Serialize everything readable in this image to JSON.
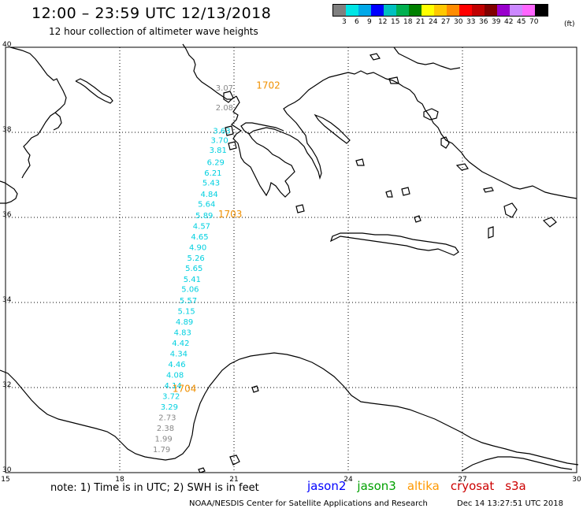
{
  "header": {
    "title": "12:00 – 23:59 UTC 12/13/2018",
    "subtitle": "12 hour collection of altimeter wave heights"
  },
  "legend": {
    "colors": [
      "#808080",
      "#00e5e5",
      "#00a8e8",
      "#0000ff",
      "#00c0c0",
      "#00b050",
      "#008000",
      "#ffff00",
      "#ffc800",
      "#ff8c00",
      "#ff0000",
      "#c00000",
      "#800000",
      "#9900cc",
      "#cc88ff",
      "#ff66ff",
      "#000000"
    ],
    "labels": [
      "3",
      "6",
      "9",
      "12",
      "15",
      "18",
      "21",
      "24",
      "27",
      "30",
      "33",
      "36",
      "39",
      "42",
      "45",
      "70"
    ],
    "unit": "(ft)"
  },
  "axes": {
    "lon_ticks": [
      "15",
      "18",
      "21",
      "24",
      "27",
      "30"
    ],
    "lat_ticks": [
      "30",
      "32",
      "34",
      "36",
      "38",
      "40"
    ]
  },
  "track": {
    "points": [
      {
        "lon": 20.75,
        "lat": 38.98,
        "swh": "3.07",
        "color": "#888888"
      },
      {
        "lon": 20.75,
        "lat": 38.52,
        "swh": "2.08",
        "color": "#888888"
      },
      {
        "lon": 20.68,
        "lat": 37.97,
        "swh": "3.63",
        "color": "#00d0e0"
      },
      {
        "lon": 20.62,
        "lat": 37.75,
        "swh": "3.70",
        "color": "#00d0e0"
      },
      {
        "lon": 20.58,
        "lat": 37.52,
        "swh": "3.81",
        "color": "#00d0e0"
      },
      {
        "lon": 20.52,
        "lat": 37.23,
        "swh": "6.29",
        "color": "#00d0e0"
      },
      {
        "lon": 20.45,
        "lat": 36.98,
        "swh": "6.21",
        "color": "#00d0e0"
      },
      {
        "lon": 20.4,
        "lat": 36.75,
        "swh": "5.43",
        "color": "#00d0e0"
      },
      {
        "lon": 20.35,
        "lat": 36.48,
        "swh": "4.84",
        "color": "#00d0e0"
      },
      {
        "lon": 20.28,
        "lat": 36.25,
        "swh": "5.64",
        "color": "#00d0e0"
      },
      {
        "lon": 20.22,
        "lat": 35.98,
        "swh": "5.89",
        "color": "#00d0e0"
      },
      {
        "lon": 20.15,
        "lat": 35.73,
        "swh": "4.57",
        "color": "#00d0e0"
      },
      {
        "lon": 20.1,
        "lat": 35.48,
        "swh": "4.65",
        "color": "#00d0e0"
      },
      {
        "lon": 20.05,
        "lat": 35.23,
        "swh": "4.90",
        "color": "#00d0e0"
      },
      {
        "lon": 20.0,
        "lat": 34.98,
        "swh": "5.26",
        "color": "#00d0e0"
      },
      {
        "lon": 19.95,
        "lat": 34.74,
        "swh": "5.65",
        "color": "#00d0e0"
      },
      {
        "lon": 19.9,
        "lat": 34.48,
        "swh": "5.41",
        "color": "#00d0e0"
      },
      {
        "lon": 19.85,
        "lat": 34.25,
        "swh": "5.06",
        "color": "#00d0e0"
      },
      {
        "lon": 19.8,
        "lat": 33.98,
        "swh": "5.57",
        "color": "#00d0e0"
      },
      {
        "lon": 19.75,
        "lat": 33.73,
        "swh": "5.15",
        "color": "#00d0e0"
      },
      {
        "lon": 19.7,
        "lat": 33.48,
        "swh": "4.89",
        "color": "#00d0e0"
      },
      {
        "lon": 19.65,
        "lat": 33.23,
        "swh": "4.83",
        "color": "#00d0e0"
      },
      {
        "lon": 19.6,
        "lat": 32.98,
        "swh": "4.42",
        "color": "#00d0e0"
      },
      {
        "lon": 19.55,
        "lat": 32.73,
        "swh": "4.34",
        "color": "#00d0e0"
      },
      {
        "lon": 19.5,
        "lat": 32.48,
        "swh": "4.46",
        "color": "#00d0e0"
      },
      {
        "lon": 19.45,
        "lat": 32.23,
        "swh": "4.08",
        "color": "#00d0e0"
      },
      {
        "lon": 19.4,
        "lat": 31.98,
        "swh": "4.14",
        "color": "#00d0e0"
      },
      {
        "lon": 19.35,
        "lat": 31.73,
        "swh": "3.72",
        "color": "#00d0e0"
      },
      {
        "lon": 19.3,
        "lat": 31.48,
        "swh": "3.29",
        "color": "#00d0e0"
      },
      {
        "lon": 19.25,
        "lat": 31.23,
        "swh": "2.73",
        "color": "#888888"
      },
      {
        "lon": 19.2,
        "lat": 30.98,
        "swh": "2.38",
        "color": "#888888"
      },
      {
        "lon": 19.15,
        "lat": 30.73,
        "swh": "1.99",
        "color": "#888888"
      },
      {
        "lon": 19.1,
        "lat": 30.48,
        "swh": "1.79",
        "color": "#888888"
      }
    ],
    "time_labels": [
      {
        "lon": 21.9,
        "lat": 39.03,
        "text": "1702"
      },
      {
        "lon": 20.9,
        "lat": 36.0,
        "text": "1703"
      },
      {
        "lon": 19.7,
        "lat": 31.9,
        "text": "1704"
      }
    ],
    "time_color": "#f09000"
  },
  "footer": {
    "note": "note:  1) Time is in UTC;  2) SWH is in feet",
    "satellites": [
      {
        "name": "jason2",
        "color": "#0000ff"
      },
      {
        "name": "jason3",
        "color": "#00a000"
      },
      {
        "name": "altika",
        "color": "#ff9900"
      },
      {
        "name": "cryosat",
        "color": "#cc0000"
      },
      {
        "name": "s3a",
        "color": "#cc0000"
      }
    ],
    "credit": "NOAA/NESDIS Center for Satellite Applications and Research",
    "timestamp": "Dec 14 13:27:51 UTC 2018"
  }
}
